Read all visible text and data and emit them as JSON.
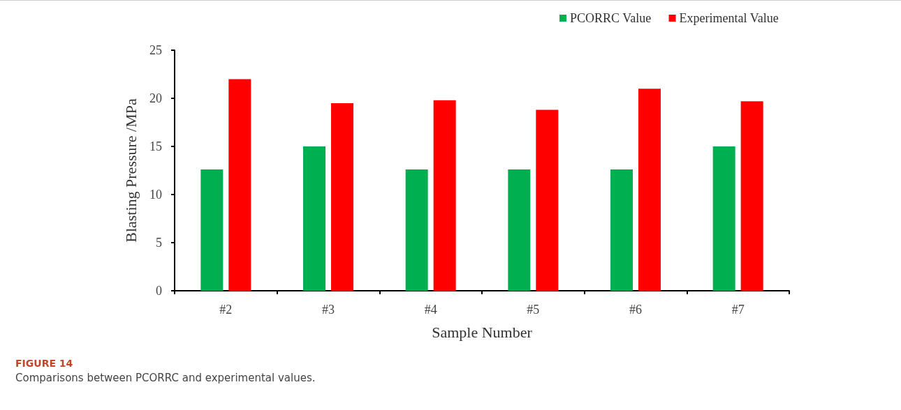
{
  "chart_data": {
    "type": "bar",
    "title": "FIGURE 14",
    "subtitle": "Comparisons between PCORRC and experimental values.",
    "xlabel": "Sample Number",
    "ylabel": "Blasting Pressure /MPa",
    "categories": [
      "#2",
      "#3",
      "#4",
      "#5",
      "#6",
      "#7"
    ],
    "series": [
      {
        "name": "PCORRC Value",
        "color": "#00b050",
        "values": [
          12.6,
          15.0,
          12.6,
          12.6,
          12.6,
          15.0
        ]
      },
      {
        "name": "Experimental Value",
        "color": "#ff0000",
        "values": [
          22.0,
          19.5,
          19.8,
          18.8,
          21.0,
          19.7
        ]
      }
    ],
    "ylim": [
      0,
      25
    ],
    "yticks": [
      0,
      5,
      10,
      15,
      20,
      25
    ],
    "grid": false,
    "legend": "top right"
  }
}
